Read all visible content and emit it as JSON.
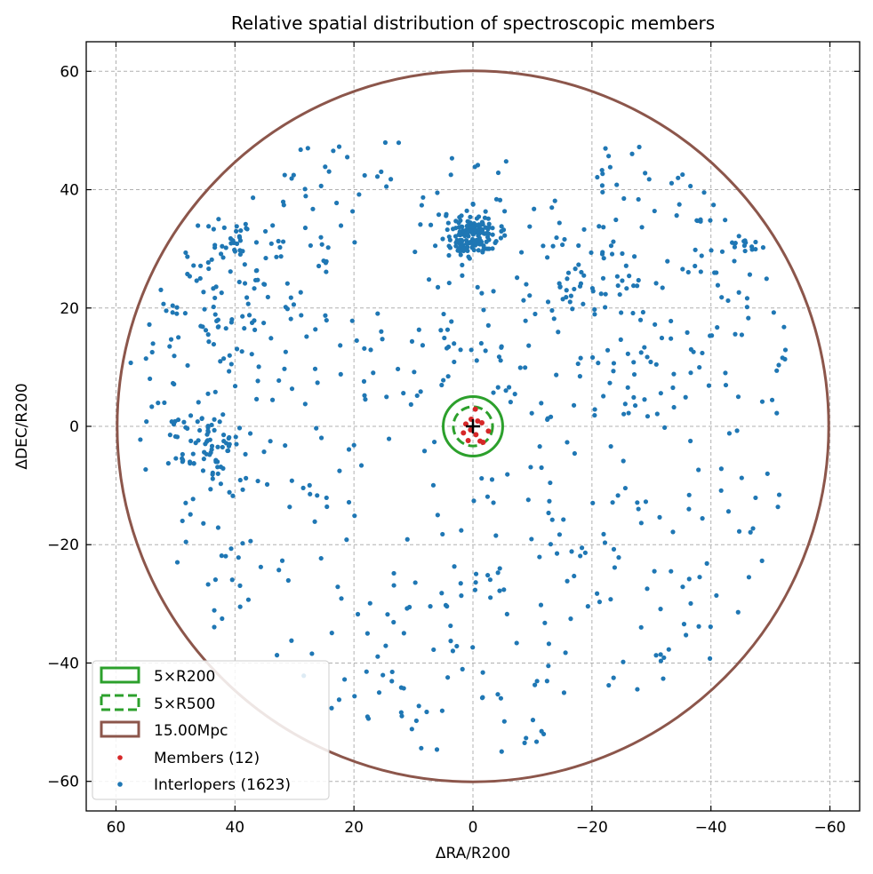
{
  "chart_data": {
    "type": "scatter",
    "title": "Relative spatial distribution of spectroscopic members",
    "xlabel": "ΔRA/R200",
    "ylabel": "ΔDEC/R200",
    "xlim": [
      65,
      -65
    ],
    "ylim": [
      -65,
      65
    ],
    "x_reversed": true,
    "xticks": [
      60,
      40,
      20,
      0,
      -20,
      -40,
      -60
    ],
    "yticks": [
      -60,
      -40,
      -20,
      0,
      20,
      40,
      60
    ],
    "xtick_labels": [
      "60",
      "40",
      "20",
      "0",
      "−20",
      "−40",
      "−60"
    ],
    "ytick_labels": [
      "−60",
      "−40",
      "−20",
      "0",
      "20",
      "40",
      "60"
    ],
    "grid": true,
    "legend_position": "lower-left",
    "center_marker": {
      "x": 0,
      "y": 0,
      "symbol": "+",
      "color": "#000000"
    },
    "circles": [
      {
        "label": "5×R200",
        "center": [
          0,
          0
        ],
        "radius": 5,
        "style": "solid",
        "color": "#2ca02c"
      },
      {
        "label": "5×R500",
        "center": [
          0,
          0
        ],
        "radius": 3.3,
        "style": "dashed",
        "color": "#2ca02c"
      },
      {
        "label": "15.00Mpc",
        "center": [
          0,
          0
        ],
        "radius": 59.8,
        "style": "solid",
        "color": "#8c564b"
      }
    ],
    "members": {
      "label": "Members (12)",
      "color": "#d62728",
      "count": 12,
      "points": [
        [
          0.3,
          1.2
        ],
        [
          -0.8,
          0.9
        ],
        [
          1.2,
          0.4
        ],
        [
          -1.5,
          0.6
        ],
        [
          0.4,
          -0.6
        ],
        [
          -0.5,
          -1.4
        ],
        [
          1.6,
          -1.1
        ],
        [
          -2.6,
          -0.8
        ],
        [
          -1.2,
          -2.5
        ],
        [
          -1.7,
          -2.7
        ],
        [
          -0.4,
          2.9
        ],
        [
          0.8,
          -2.4
        ]
      ]
    },
    "interlopers": {
      "label": "Interlopers (1623)",
      "color": "#1f77b4",
      "count": 1623,
      "sample_points_shown": 0
    }
  },
  "legend": {
    "item_r200": "5×R200",
    "item_r500": "5×R500",
    "item_mpc": "15.00Mpc",
    "item_members": "Members (12)",
    "item_interlopers": "Interlopers (1623)"
  }
}
